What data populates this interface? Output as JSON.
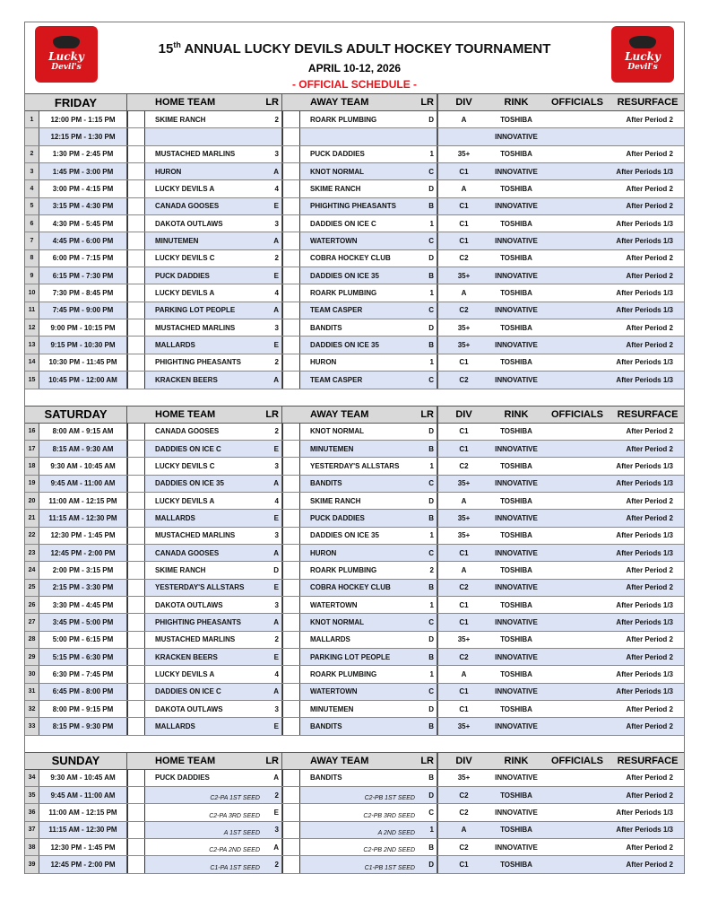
{
  "header": {
    "title_num": "15",
    "title_sup": "th",
    "title": "ANNUAL LUCKY DEVILS ADULT HOCKEY TOURNAMENT",
    "dates": "APRIL 10-12, 2026",
    "subtitle": "- OFFICIAL SCHEDULE -",
    "logo_text": "Lucky Devil's"
  },
  "colors": {
    "accent": "#e8141b",
    "row_alt": "#dce3f4",
    "header_bg": "#d9d9d9"
  },
  "columns": {
    "home": "HOME TEAM",
    "lr": "LR",
    "away": "AWAY TEAM",
    "div": "DIV",
    "rink": "RINK",
    "officials": "OFFICIALS",
    "resurface": "RESURFACE"
  },
  "days": [
    {
      "day": "FRIDAY",
      "rows": [
        [
          "1",
          "12:00 PM - 1:15 PM",
          "SKIME RANCH",
          "2",
          "ROARK PLUMBING",
          "D",
          "A",
          "TOSHIBA",
          "After Period 2"
        ],
        [
          "",
          "12:15 PM - 1:30 PM",
          "",
          "",
          "",
          "",
          "",
          "INNOVATIVE",
          ""
        ],
        [
          "2",
          "1:30 PM - 2:45 PM",
          "MUSTACHED MARLINS",
          "3",
          "PUCK DADDIES",
          "1",
          "35+",
          "TOSHIBA",
          "After Period 2"
        ],
        [
          "3",
          "1:45 PM - 3:00 PM",
          "HURON",
          "A",
          "KNOT NORMAL",
          "C",
          "C1",
          "INNOVATIVE",
          "After Periods 1/3"
        ],
        [
          "4",
          "3:00 PM - 4:15 PM",
          "LUCKY DEVILS A",
          "4",
          "SKIME RANCH",
          "D",
          "A",
          "TOSHIBA",
          "After Period 2"
        ],
        [
          "5",
          "3:15 PM - 4:30 PM",
          "CANADA GOOSES",
          "E",
          "PHIGHTING PHEASANTS",
          "B",
          "C1",
          "INNOVATIVE",
          "After Period 2"
        ],
        [
          "6",
          "4:30 PM - 5:45 PM",
          "DAKOTA OUTLAWS",
          "3",
          "DADDIES ON ICE C",
          "1",
          "C1",
          "TOSHIBA",
          "After Periods 1/3"
        ],
        [
          "7",
          "4:45 PM - 6:00 PM",
          "MINUTEMEN",
          "A",
          "WATERTOWN",
          "C",
          "C1",
          "INNOVATIVE",
          "After Periods 1/3"
        ],
        [
          "8",
          "6:00 PM - 7:15 PM",
          "LUCKY DEVILS C",
          "2",
          "COBRA HOCKEY CLUB",
          "D",
          "C2",
          "TOSHIBA",
          "After Period 2"
        ],
        [
          "9",
          "6:15 PM - 7:30 PM",
          "PUCK DADDIES",
          "E",
          "DADDIES ON ICE 35",
          "B",
          "35+",
          "INNOVATIVE",
          "After Period 2"
        ],
        [
          "10",
          "7:30 PM - 8:45 PM",
          "LUCKY DEVILS A",
          "4",
          "ROARK PLUMBING",
          "1",
          "A",
          "TOSHIBA",
          "After Periods 1/3"
        ],
        [
          "11",
          "7:45 PM - 9:00 PM",
          "PARKING LOT PEOPLE",
          "A",
          "TEAM CASPER",
          "C",
          "C2",
          "INNOVATIVE",
          "After Periods 1/3"
        ],
        [
          "12",
          "9:00 PM - 10:15 PM",
          "MUSTACHED MARLINS",
          "3",
          "BANDITS",
          "D",
          "35+",
          "TOSHIBA",
          "After Period 2"
        ],
        [
          "13",
          "9:15 PM - 10:30 PM",
          "MALLARDS",
          "E",
          "DADDIES ON ICE 35",
          "B",
          "35+",
          "INNOVATIVE",
          "After Period 2"
        ],
        [
          "14",
          "10:30 PM - 11:45 PM",
          "PHIGHTING PHEASANTS",
          "2",
          "HURON",
          "1",
          "C1",
          "TOSHIBA",
          "After Periods 1/3"
        ],
        [
          "15",
          "10:45 PM - 12:00 AM",
          "KRACKEN BEERS",
          "A",
          "TEAM CASPER",
          "C",
          "C2",
          "INNOVATIVE",
          "After Periods 1/3"
        ]
      ]
    },
    {
      "day": "SATURDAY",
      "rows": [
        [
          "16",
          "8:00 AM - 9:15 AM",
          "CANADA GOOSES",
          "2",
          "KNOT NORMAL",
          "D",
          "C1",
          "TOSHIBA",
          "After Period 2"
        ],
        [
          "17",
          "8:15 AM - 9:30 AM",
          "DADDIES ON ICE C",
          "E",
          "MINUTEMEN",
          "B",
          "C1",
          "INNOVATIVE",
          "After Period 2"
        ],
        [
          "18",
          "9:30 AM - 10:45 AM",
          "LUCKY DEVILS C",
          "3",
          "YESTERDAY'S ALLSTARS",
          "1",
          "C2",
          "TOSHIBA",
          "After Periods 1/3"
        ],
        [
          "19",
          "9:45 AM - 11:00 AM",
          "DADDIES ON ICE 35",
          "A",
          "BANDITS",
          "C",
          "35+",
          "INNOVATIVE",
          "After Periods 1/3"
        ],
        [
          "20",
          "11:00 AM - 12:15 PM",
          "LUCKY DEVILS A",
          "4",
          "SKIME RANCH",
          "D",
          "A",
          "TOSHIBA",
          "After Period 2"
        ],
        [
          "21",
          "11:15 AM - 12:30 PM",
          "MALLARDS",
          "E",
          "PUCK DADDIES",
          "B",
          "35+",
          "INNOVATIVE",
          "After Period 2"
        ],
        [
          "22",
          "12:30 PM - 1:45 PM",
          "MUSTACHED MARLINS",
          "3",
          "DADDIES ON ICE 35",
          "1",
          "35+",
          "TOSHIBA",
          "After Periods 1/3"
        ],
        [
          "23",
          "12:45 PM - 2:00 PM",
          "CANADA GOOSES",
          "A",
          "HURON",
          "C",
          "C1",
          "INNOVATIVE",
          "After Periods 1/3"
        ],
        [
          "24",
          "2:00 PM - 3:15 PM",
          "SKIME RANCH",
          "D",
          "ROARK PLUMBING",
          "2",
          "A",
          "TOSHIBA",
          "After Period 2"
        ],
        [
          "25",
          "2:15 PM - 3:30 PM",
          "YESTERDAY'S ALLSTARS",
          "E",
          "COBRA HOCKEY CLUB",
          "B",
          "C2",
          "INNOVATIVE",
          "After Period 2"
        ],
        [
          "26",
          "3:30 PM - 4:45 PM",
          "DAKOTA OUTLAWS",
          "3",
          "WATERTOWN",
          "1",
          "C1",
          "TOSHIBA",
          "After Periods 1/3"
        ],
        [
          "27",
          "3:45 PM - 5:00 PM",
          "PHIGHTING PHEASANTS",
          "A",
          "KNOT NORMAL",
          "C",
          "C1",
          "INNOVATIVE",
          "After Periods 1/3"
        ],
        [
          "28",
          "5:00 PM - 6:15 PM",
          "MUSTACHED MARLINS",
          "2",
          "MALLARDS",
          "D",
          "35+",
          "TOSHIBA",
          "After Period 2"
        ],
        [
          "29",
          "5:15 PM - 6:30 PM",
          "KRACKEN BEERS",
          "E",
          "PARKING LOT PEOPLE",
          "B",
          "C2",
          "INNOVATIVE",
          "After Period 2"
        ],
        [
          "30",
          "6:30 PM - 7:45 PM",
          "LUCKY DEVILS A",
          "4",
          "ROARK PLUMBING",
          "1",
          "A",
          "TOSHIBA",
          "After Periods 1/3"
        ],
        [
          "31",
          "6:45 PM - 8:00 PM",
          "DADDIES ON ICE C",
          "A",
          "WATERTOWN",
          "C",
          "C1",
          "INNOVATIVE",
          "After Periods 1/3"
        ],
        [
          "32",
          "8:00 PM - 9:15 PM",
          "DAKOTA OUTLAWS",
          "3",
          "MINUTEMEN",
          "D",
          "C1",
          "TOSHIBA",
          "After Period 2"
        ],
        [
          "33",
          "8:15 PM - 9:30 PM",
          "MALLARDS",
          "E",
          "BANDITS",
          "B",
          "35+",
          "INNOVATIVE",
          "After Period 2"
        ]
      ]
    },
    {
      "day": "SUNDAY",
      "rows": [
        [
          "34",
          "9:30 AM - 10:45 AM",
          "PUCK DADDIES",
          "A",
          "BANDITS",
          "B",
          "35+",
          "INNOVATIVE",
          "After Period 2"
        ],
        [
          "35",
          "9:45 AM - 11:00 AM",
          "C2-PA 1ST SEED",
          "2",
          "C2-PB 1ST SEED",
          "D",
          "C2",
          "TOSHIBA",
          "After Period 2"
        ],
        [
          "36",
          "11:00 AM - 12:15 PM",
          "C2-PA 3RD SEED",
          "E",
          "C2-PB 3RD SEED",
          "C",
          "C2",
          "INNOVATIVE",
          "After Periods 1/3"
        ],
        [
          "37",
          "11:15 AM - 12:30 PM",
          "A 1ST SEED",
          "3",
          "A 2ND SEED",
          "1",
          "A",
          "TOSHIBA",
          "After Periods 1/3"
        ],
        [
          "38",
          "12:30 PM - 1:45 PM",
          "C2-PA 2ND SEED",
          "A",
          "C2-PB 2ND SEED",
          "B",
          "C2",
          "INNOVATIVE",
          "After Period 2"
        ],
        [
          "39",
          "12:45 PM - 2:00 PM",
          "C1-PA 1ST SEED",
          "2",
          "C1-PB 1ST SEED",
          "D",
          "C1",
          "TOSHIBA",
          "After Period 2"
        ]
      ]
    }
  ]
}
